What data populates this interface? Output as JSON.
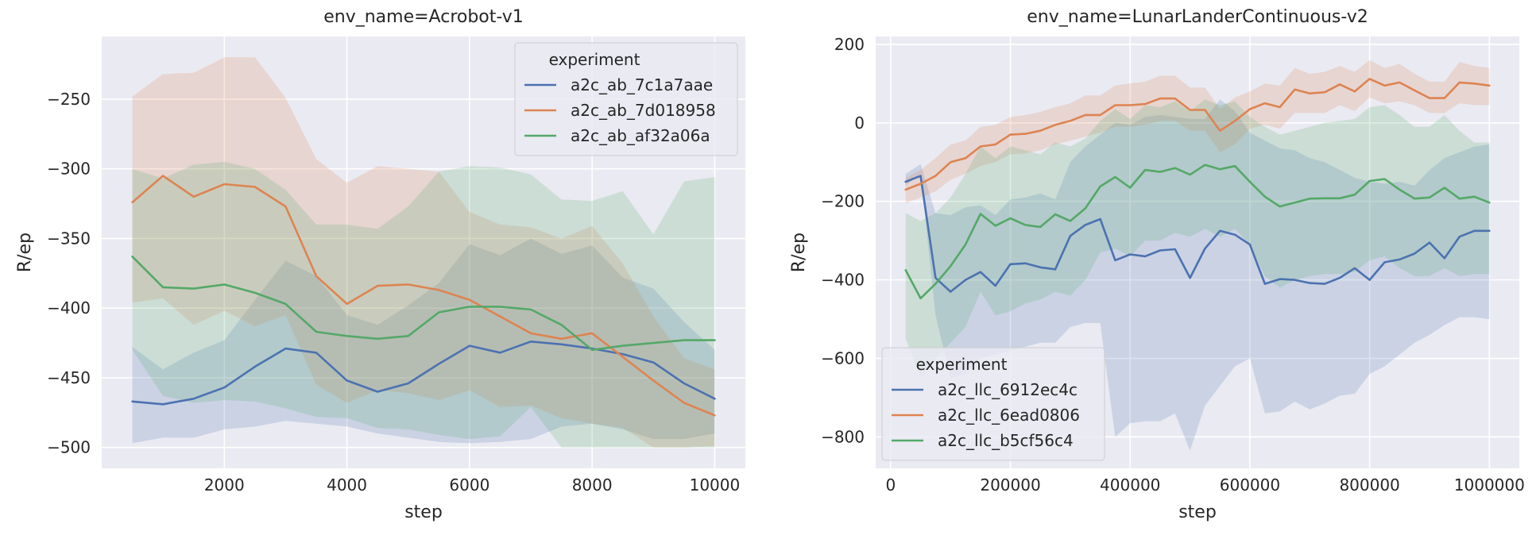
{
  "chart_data": [
    {
      "type": "line",
      "title": "env_name=Acrobot-v1",
      "xlabel": "step",
      "ylabel": "R/ep",
      "xlim": [
        0,
        10500
      ],
      "ylim": [
        -515,
        -205
      ],
      "xticks": [
        2000,
        4000,
        6000,
        8000,
        10000
      ],
      "yticks": [
        -500,
        -450,
        -400,
        -350,
        -300,
        -250
      ],
      "grid": true,
      "legend_title": "experiment",
      "legend_position": "top-right",
      "x": [
        500,
        1000,
        1500,
        2000,
        2500,
        3000,
        3500,
        4000,
        4500,
        5000,
        5500,
        6000,
        6500,
        7000,
        7500,
        8000,
        8500,
        9000,
        9500,
        10000
      ],
      "series": [
        {
          "name": "a2c_ab_7c1a7aae",
          "color": "#4c72b0",
          "values": [
            -467,
            -469,
            -465,
            -457,
            -442,
            -429,
            -432,
            -452,
            -460,
            -454,
            -440,
            -427,
            -432,
            -424,
            -426,
            -429,
            -433,
            -439,
            -454,
            -465
          ],
          "lower": [
            -497,
            -493,
            -493,
            -487,
            -485,
            -481,
            -483,
            -485,
            -490,
            -493,
            -496,
            -497,
            -496,
            -494,
            -485,
            -483,
            -487,
            -494,
            -494,
            -490
          ],
          "upper": [
            -428,
            -444,
            -432,
            -423,
            -394,
            -366,
            -377,
            -405,
            -412,
            -398,
            -382,
            -354,
            -362,
            -350,
            -361,
            -355,
            -378,
            -386,
            -410,
            -430
          ]
        },
        {
          "name": "a2c_ab_7d018958",
          "color": "#dd8452",
          "values": [
            -324,
            -305,
            -320,
            -311,
            -313,
            -327,
            -377,
            -397,
            -384,
            -383,
            -387,
            -394,
            -406,
            -418,
            -422,
            -418,
            -435,
            -452,
            -468,
            -477
          ],
          "lower": [
            -396,
            -393,
            -412,
            -402,
            -413,
            -405,
            -455,
            -468,
            -459,
            -461,
            -466,
            -459,
            -471,
            -470,
            -479,
            -483,
            -486,
            -500,
            -500,
            -499
          ],
          "upper": [
            -248,
            -232,
            -231,
            -220,
            -220,
            -249,
            -293,
            -310,
            -298,
            -300,
            -302,
            -331,
            -340,
            -342,
            -350,
            -341,
            -368,
            -406,
            -436,
            -444
          ]
        },
        {
          "name": "a2c_ab_af32a06a",
          "color": "#55a868",
          "values": [
            -363,
            -385,
            -386,
            -383,
            -389,
            -397,
            -417,
            -420,
            -422,
            -420,
            -403,
            -399,
            -399,
            -401,
            -412,
            -430,
            -427,
            -425,
            -423,
            -423
          ],
          "lower": [
            -430,
            -463,
            -468,
            -466,
            -467,
            -472,
            -478,
            -479,
            -486,
            -487,
            -491,
            -494,
            -492,
            -471,
            -500,
            -500,
            -500,
            -500,
            -500,
            -500
          ],
          "upper": [
            -300,
            -307,
            -297,
            -295,
            -300,
            -315,
            -340,
            -340,
            -343,
            -327,
            -302,
            -298,
            -299,
            -304,
            -322,
            -323,
            -316,
            -347,
            -309,
            -306
          ]
        }
      ]
    },
    {
      "type": "line",
      "title": "env_name=LunarLanderContinuous-v2",
      "xlabel": "step",
      "ylabel": "R/ep",
      "xlim": [
        -25000,
        1050000
      ],
      "ylim": [
        -880,
        220
      ],
      "xticks": [
        0,
        200000,
        400000,
        600000,
        800000,
        1000000
      ],
      "yticks": [
        -800,
        -600,
        -400,
        -200,
        0,
        200
      ],
      "grid": true,
      "legend_title": "experiment",
      "legend_position": "lower-left",
      "x": [
        25000,
        50000,
        75000,
        100000,
        125000,
        150000,
        175000,
        200000,
        225000,
        250000,
        275000,
        300000,
        325000,
        350000,
        375000,
        400000,
        425000,
        450000,
        475000,
        500000,
        525000,
        550000,
        575000,
        600000,
        625000,
        650000,
        675000,
        700000,
        725000,
        750000,
        775000,
        800000,
        825000,
        850000,
        875000,
        900000,
        925000,
        950000,
        975000,
        1000000
      ],
      "series": [
        {
          "name": "a2c_llc_6912ec4c",
          "color": "#4c72b0",
          "values": [
            -150,
            -135,
            -395,
            -430,
            -400,
            -380,
            -415,
            -360,
            -358,
            -368,
            -373,
            -288,
            -260,
            -245,
            -350,
            -335,
            -340,
            -325,
            -322,
            -395,
            -320,
            -275,
            -285,
            -310,
            -410,
            -398,
            -400,
            -408,
            -410,
            -395,
            -370,
            -400,
            -355,
            -348,
            -333,
            -305,
            -345,
            -290,
            -275,
            -275
          ],
          "lower": [
            -160,
            -130,
            -490,
            -650,
            -640,
            -600,
            -590,
            -580,
            -570,
            -560,
            -560,
            -520,
            -510,
            -510,
            -800,
            -765,
            -760,
            -760,
            -740,
            -835,
            -720,
            -670,
            -620,
            -600,
            -740,
            -735,
            -710,
            -730,
            -715,
            -695,
            -690,
            -640,
            -620,
            -590,
            -560,
            -540,
            -515,
            -495,
            -495,
            -500
          ],
          "upper": [
            -130,
            -105,
            -230,
            -235,
            -215,
            -210,
            -235,
            -195,
            -190,
            -180,
            -195,
            -100,
            -60,
            -30,
            0,
            -5,
            15,
            20,
            15,
            10,
            10,
            60,
            30,
            -25,
            -45,
            -65,
            -70,
            -90,
            -100,
            -120,
            -140,
            -150,
            -155,
            -150,
            -160,
            -120,
            -90,
            -75,
            -60,
            -55
          ]
        },
        {
          "name": "a2c_llc_6ead0806",
          "color": "#dd8452",
          "values": [
            -170,
            -155,
            -135,
            -100,
            -90,
            -60,
            -55,
            -30,
            -28,
            -20,
            -5,
            5,
            20,
            20,
            45,
            45,
            48,
            62,
            62,
            33,
            33,
            -20,
            5,
            35,
            50,
            40,
            85,
            75,
            78,
            98,
            80,
            112,
            95,
            103,
            83,
            63,
            63,
            103,
            100,
            95
          ],
          "lower": [
            -205,
            -190,
            -175,
            -145,
            -130,
            -110,
            -100,
            -80,
            -78,
            -70,
            -55,
            -45,
            -35,
            -25,
            -10,
            -10,
            -5,
            5,
            5,
            -20,
            -20,
            -75,
            -55,
            -15,
            -5,
            -15,
            25,
            25,
            25,
            45,
            30,
            65,
            50,
            55,
            45,
            25,
            25,
            50,
            45,
            45
          ],
          "upper": [
            -140,
            -120,
            -90,
            -55,
            -45,
            -10,
            -5,
            15,
            20,
            28,
            40,
            50,
            70,
            70,
            95,
            100,
            105,
            120,
            120,
            90,
            90,
            35,
            65,
            80,
            100,
            95,
            140,
            125,
            130,
            145,
            130,
            160,
            140,
            150,
            125,
            105,
            105,
            155,
            145,
            140
          ]
        },
        {
          "name": "a2c_llc_b5cf56c4",
          "color": "#55a868",
          "values": [
            -375,
            -447,
            -410,
            -365,
            -310,
            -232,
            -262,
            -243,
            -260,
            -265,
            -233,
            -250,
            -218,
            -162,
            -138,
            -165,
            -120,
            -125,
            -115,
            -132,
            -107,
            -118,
            -110,
            -150,
            -188,
            -213,
            -203,
            -193,
            -192,
            -192,
            -183,
            -148,
            -143,
            -170,
            -193,
            -190,
            -165,
            -193,
            -188,
            -203
          ],
          "lower": [
            -550,
            -650,
            -600,
            -560,
            -520,
            -430,
            -490,
            -480,
            -460,
            -450,
            -430,
            -440,
            -400,
            -330,
            -320,
            -340,
            -300,
            -300,
            -280,
            -290,
            -270,
            -290,
            -270,
            -310,
            -390,
            -420,
            -400,
            -390,
            -385,
            -385,
            -380,
            -350,
            -340,
            -370,
            -390,
            -390,
            -370,
            -390,
            -385,
            -385
          ],
          "upper": [
            -230,
            -250,
            -230,
            -190,
            -130,
            -60,
            -90,
            -60,
            -70,
            -80,
            -50,
            -60,
            -40,
            5,
            35,
            10,
            45,
            40,
            55,
            30,
            60,
            45,
            55,
            15,
            -10,
            -30,
            -20,
            -10,
            0,
            5,
            10,
            40,
            45,
            20,
            -10,
            -10,
            20,
            -20,
            -50,
            -50
          ]
        }
      ]
    }
  ]
}
